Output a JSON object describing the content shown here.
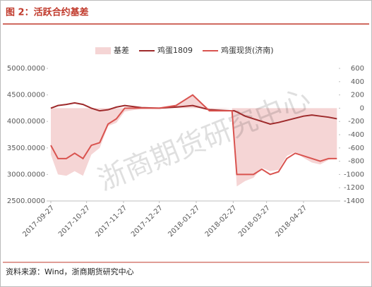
{
  "chart_data": {
    "type": "line",
    "title": "图 2：活跃合约基差",
    "source": "资料来源：Wind，浙商期货研究中心",
    "watermark": "浙商期货研究中心",
    "x": [
      "2017-09-27",
      "2017-10-03",
      "2017-10-10",
      "2017-10-17",
      "2017-10-24",
      "2017-10-31",
      "2017-11-07",
      "2017-11-14",
      "2017-11-21",
      "2017-11-28",
      "2017-12-12",
      "2017-12-27",
      "2018-01-10",
      "2018-01-24",
      "2018-02-07",
      "2018-02-26",
      "2018-02-28",
      "2018-03-02",
      "2018-03-09",
      "2018-03-16",
      "2018-03-23",
      "2018-03-30",
      "2018-04-06",
      "2018-04-13",
      "2018-04-20",
      "2018-04-27",
      "2018-05-04",
      "2018-05-11",
      "2018-05-18",
      "2018-05-25"
    ],
    "xticks": [
      "2017-09-27",
      "2017-10-27",
      "2017-11-27",
      "2017-12-27",
      "2018-01-27",
      "2018-02-27",
      "2018-03-27",
      "2018-04-27"
    ],
    "series": [
      {
        "name": "基差",
        "kind": "area",
        "axis": "y2",
        "color": "#f5d5d5",
        "values": [
          -700,
          -1000,
          -1020,
          -950,
          -1020,
          -700,
          -600,
          -270,
          -220,
          -50,
          -10,
          0,
          30,
          200,
          -20,
          0,
          -600,
          -1180,
          -1100,
          -1050,
          -900,
          -950,
          -930,
          -720,
          -660,
          -750,
          -820,
          -850,
          -780,
          -750
        ]
      },
      {
        "name": "鸡蛋1809",
        "kind": "line",
        "color": "#9e2a2b",
        "values": [
          4250,
          4300,
          4320,
          4350,
          4320,
          4250,
          4200,
          4220,
          4270,
          4300,
          4260,
          4250,
          4270,
          4300,
          4220,
          4200,
          4200,
          4180,
          4100,
          4050,
          4000,
          3950,
          3980,
          4020,
          4060,
          4100,
          4120,
          4100,
          4080,
          4050
        ]
      },
      {
        "name": "鸡蛋现货(济南)",
        "kind": "line",
        "color": "#d9534f",
        "values": [
          3550,
          3300,
          3300,
          3400,
          3300,
          3550,
          3600,
          3950,
          4050,
          4250,
          4250,
          4250,
          4300,
          4500,
          4200,
          4200,
          3600,
          3000,
          3000,
          3000,
          3100,
          3000,
          3050,
          3300,
          3400,
          3350,
          3300,
          3250,
          3300,
          3300
        ]
      }
    ],
    "ylim": [
      2500,
      5000
    ],
    "yticks": [
      {
        "value": 5000,
        "label": "5000.0000"
      },
      {
        "value": 4500,
        "label": "4500.0000"
      },
      {
        "value": 4000,
        "label": "4000.0000"
      },
      {
        "value": 3500,
        "label": "3500.0000"
      },
      {
        "value": 3000,
        "label": "3000.0000"
      },
      {
        "value": 2500,
        "label": "2500.0000"
      }
    ],
    "y2lim": [
      -1400,
      600
    ],
    "y2ticks": [
      600,
      400,
      200,
      0,
      -200,
      -400,
      -600,
      -800,
      -1000,
      -1200,
      -1400
    ]
  }
}
